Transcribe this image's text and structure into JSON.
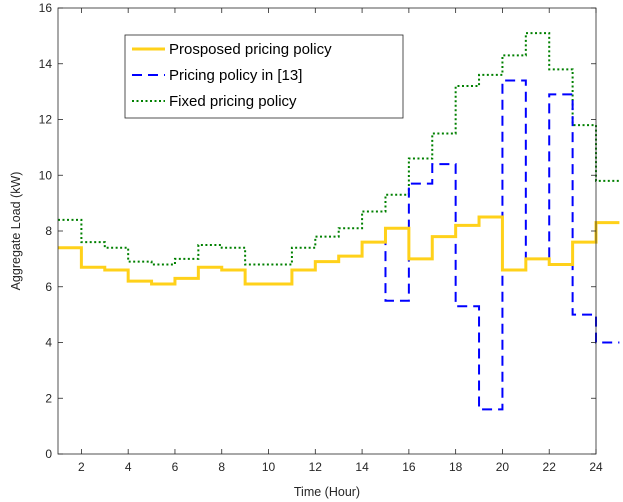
{
  "chart_data": {
    "type": "line",
    "step": true,
    "xlabel": "Time (Hour)",
    "ylabel": "Aggregate Load (kW)",
    "xlim": [
      1,
      24
    ],
    "ylim": [
      0,
      16
    ],
    "x_ticks": [
      2,
      4,
      6,
      8,
      10,
      12,
      14,
      16,
      18,
      20,
      22,
      24
    ],
    "y_ticks": [
      0,
      2,
      4,
      6,
      8,
      10,
      12,
      14,
      16
    ],
    "grid": false,
    "legend_position": "top-left",
    "x": [
      1,
      2,
      3,
      4,
      5,
      6,
      7,
      8,
      9,
      10,
      11,
      12,
      13,
      14,
      15,
      16,
      17,
      18,
      19,
      20,
      21,
      22,
      23,
      24
    ],
    "series": [
      {
        "name": "Prosposed pricing policy",
        "color": "#FFD11A",
        "style": "solid",
        "values": [
          7.4,
          6.7,
          6.6,
          6.2,
          6.1,
          6.3,
          6.7,
          6.6,
          6.1,
          6.1,
          6.6,
          6.9,
          7.1,
          7.6,
          8.1,
          7.0,
          7.8,
          8.2,
          8.5,
          6.6,
          7.0,
          6.8,
          7.6,
          8.3
        ]
      },
      {
        "name": "Pricing policy in [13]",
        "color": "#0000FF",
        "style": "dashed",
        "values": [
          7.4,
          6.7,
          6.6,
          6.2,
          6.1,
          6.3,
          6.7,
          6.6,
          6.1,
          6.1,
          6.6,
          6.9,
          7.1,
          7.6,
          5.5,
          9.7,
          10.4,
          5.3,
          1.6,
          13.4,
          7.0,
          12.9,
          5.0,
          4.0
        ]
      },
      {
        "name": "Fixed pricing policy",
        "color": "#008000",
        "style": "dotted",
        "values": [
          8.4,
          7.6,
          7.4,
          6.9,
          6.8,
          7.0,
          7.5,
          7.4,
          6.8,
          6.8,
          7.4,
          7.8,
          8.1,
          8.7,
          9.3,
          10.6,
          11.5,
          13.2,
          13.6,
          14.3,
          15.1,
          13.8,
          11.8,
          9.8
        ]
      }
    ]
  }
}
